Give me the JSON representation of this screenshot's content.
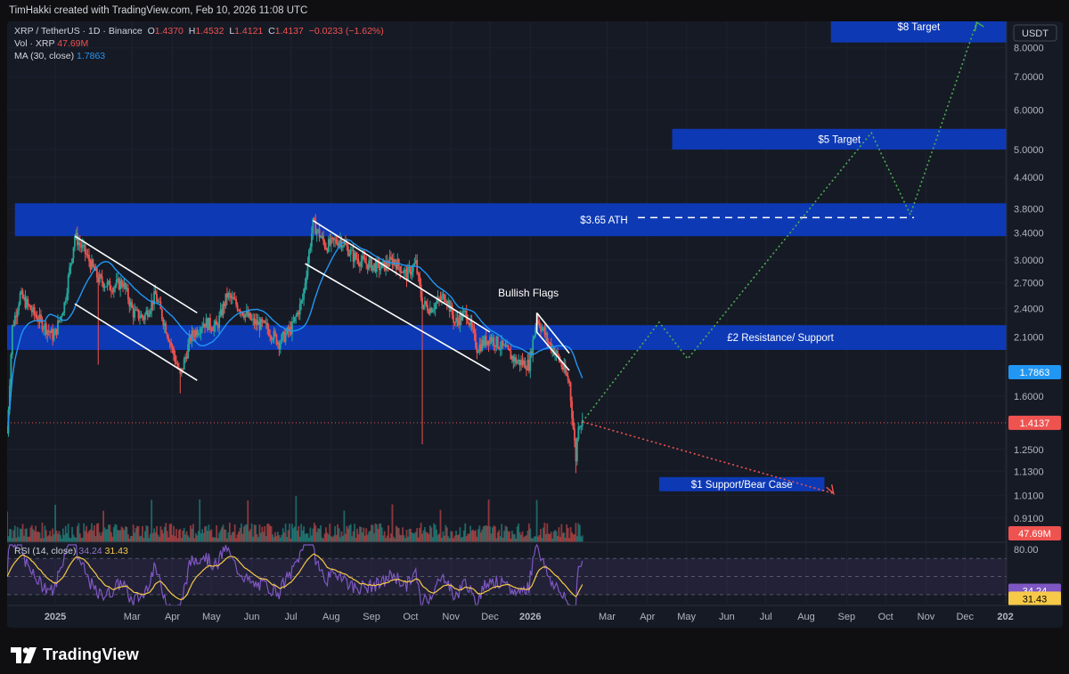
{
  "header": {
    "credit": "TimHakki created with TradingView.com, Feb 10, 2026 11:08 UTC"
  },
  "legend": {
    "symbol_line": "XRP / TetherUS · 1D · Binance",
    "ohlc": {
      "o_label": "O",
      "o": "1.4370",
      "h_label": "H",
      "h": "1.4532",
      "l_label": "L",
      "l": "1.4121",
      "c_label": "C",
      "c": "1.4137",
      "change": "−0.0233 (−1.62%)"
    },
    "vol_label": "Vol · XRP",
    "vol_value": "47.69",
    "vol_unit": "M",
    "ma_label": "MA (30, close)",
    "ma_value": "1.7863",
    "rsi_label": "RSI (14, close)",
    "rsi_value": "34.24",
    "rsi_ma_value": "31.43"
  },
  "currency_button": "USDT",
  "footer": {
    "brand": "TradingView"
  },
  "colors": {
    "background": "#161a25",
    "zone_blue": "#0d3bbd",
    "candle_up": "#26a69a",
    "candle_down": "#ef5350",
    "ma_line": "#2196f3",
    "rsi_line": "#7e57c2",
    "rsi_ma": "#f7c948",
    "bull_path": "#4caf50",
    "bear_path": "#ef5350"
  },
  "chart_data": {
    "type": "candlestick",
    "symbol": "XRP / TetherUS",
    "interval": "1D",
    "exchange": "Binance",
    "y_scale": "log",
    "y_range": [
      0.84,
      9.0
    ],
    "y_ticks": [
      "8.0000",
      "7.0000",
      "6.0000",
      "5.0000",
      "4.4000",
      "3.8000",
      "3.4000",
      "3.0000",
      "2.7000",
      "2.4000",
      "2.1000",
      "1.6000",
      "1.2500",
      "1.1300",
      "1.0100",
      "0.9100"
    ],
    "x_ticks": [
      "2025",
      "Mar",
      "Apr",
      "May",
      "Jun",
      "Jul",
      "Aug",
      "Sep",
      "Oct",
      "Nov",
      "Dec",
      "2026",
      "Mar",
      "Apr",
      "May",
      "Jun",
      "Jul",
      "Aug",
      "Sep",
      "Oct",
      "Nov",
      "Dec",
      "202"
    ],
    "x_range": [
      "2024-11-25",
      "2027-01-02"
    ],
    "price_path": [
      [
        "2024-11-25",
        1.35
      ],
      [
        "2024-11-29",
        2.2
      ],
      [
        "2024-12-05",
        2.55
      ],
      [
        "2024-12-15",
        2.35
      ],
      [
        "2024-12-31",
        2.1
      ],
      [
        "2025-01-08",
        2.45
      ],
      [
        "2025-01-16",
        3.35
      ],
      [
        "2025-01-24",
        3.1
      ],
      [
        "2025-02-03",
        2.75
      ],
      [
        "2025-02-12",
        2.65
      ],
      [
        "2025-02-22",
        2.7
      ],
      [
        "2025-03-02",
        2.35
      ],
      [
        "2025-03-10",
        2.3
      ],
      [
        "2025-03-19",
        2.55
      ],
      [
        "2025-03-28",
        2.15
      ],
      [
        "2025-04-07",
        1.75
      ],
      [
        "2025-04-15",
        2.1
      ],
      [
        "2025-04-25",
        2.25
      ],
      [
        "2025-05-05",
        2.2
      ],
      [
        "2025-05-13",
        2.55
      ],
      [
        "2025-05-23",
        2.4
      ],
      [
        "2025-06-02",
        2.25
      ],
      [
        "2025-06-12",
        2.2
      ],
      [
        "2025-06-22",
        2.05
      ],
      [
        "2025-07-02",
        2.2
      ],
      [
        "2025-07-10",
        2.5
      ],
      [
        "2025-07-18",
        3.55
      ],
      [
        "2025-07-28",
        3.2
      ],
      [
        "2025-08-08",
        3.3
      ],
      [
        "2025-08-18",
        3.05
      ],
      [
        "2025-08-28",
        2.95
      ],
      [
        "2025-09-08",
        2.9
      ],
      [
        "2025-09-18",
        3.0
      ],
      [
        "2025-09-28",
        2.8
      ],
      [
        "2025-10-05",
        2.95
      ],
      [
        "2025-10-10",
        2.45
      ],
      [
        "2025-10-16",
        2.4
      ],
      [
        "2025-10-28",
        2.55
      ],
      [
        "2025-11-04",
        2.25
      ],
      [
        "2025-11-13",
        2.35
      ],
      [
        "2025-11-21",
        2.0
      ],
      [
        "2025-12-01",
        2.1
      ],
      [
        "2025-12-11",
        2.0
      ],
      [
        "2025-12-21",
        1.88
      ],
      [
        "2025-12-31",
        1.85
      ],
      [
        "2026-01-06",
        2.3
      ],
      [
        "2026-01-15",
        2.05
      ],
      [
        "2026-01-22",
        1.92
      ],
      [
        "2026-01-31",
        1.7
      ],
      [
        "2026-02-05",
        1.2
      ],
      [
        "2026-02-07",
        1.42
      ],
      [
        "2026-02-10",
        1.4137
      ]
    ],
    "ma30_last": 1.7863,
    "last_price": 1.4137,
    "last_volume": "47.69M",
    "zones": [
      {
        "label": "$8 Target",
        "from": 8.2,
        "to": 9.5,
        "start": "2026-08-20"
      },
      {
        "label": "$5 Target",
        "from": 5.0,
        "to": 5.5,
        "start": "2026-04-20"
      },
      {
        "label": "$3.65 ATH",
        "from": 3.35,
        "to": 3.9,
        "start": "2024-12-01"
      },
      {
        "label": "£2 Resistance/ Support",
        "from": 1.98,
        "to": 2.22,
        "start": "2024-11-25"
      },
      {
        "label": "$1 Support/Bear Case",
        "from": 1.03,
        "to": 1.1,
        "start": "2026-04-10",
        "end": "2026-08-15"
      }
    ],
    "annotations": [
      {
        "text": "Bullish Flags",
        "date": "2025-12-10",
        "price": 2.6
      },
      {
        "text": "$3.65 ATH",
        "price": 3.65
      }
    ],
    "bull_projection": [
      [
        "2026-02-10",
        1.42
      ],
      [
        "2026-04-10",
        2.25
      ],
      [
        "2026-05-02",
        1.9
      ],
      [
        "2026-09-20",
        5.4
      ],
      [
        "2026-10-20",
        3.7
      ],
      [
        "2026-12-10",
        9.0
      ]
    ],
    "bear_projection": [
      [
        "2026-02-10",
        1.42
      ],
      [
        "2026-08-22",
        1.02
      ]
    ],
    "rsi": {
      "levels": [
        70,
        50,
        30
      ],
      "ticks": [
        "80.00"
      ],
      "current": 34.24,
      "ma": 31.43
    }
  }
}
